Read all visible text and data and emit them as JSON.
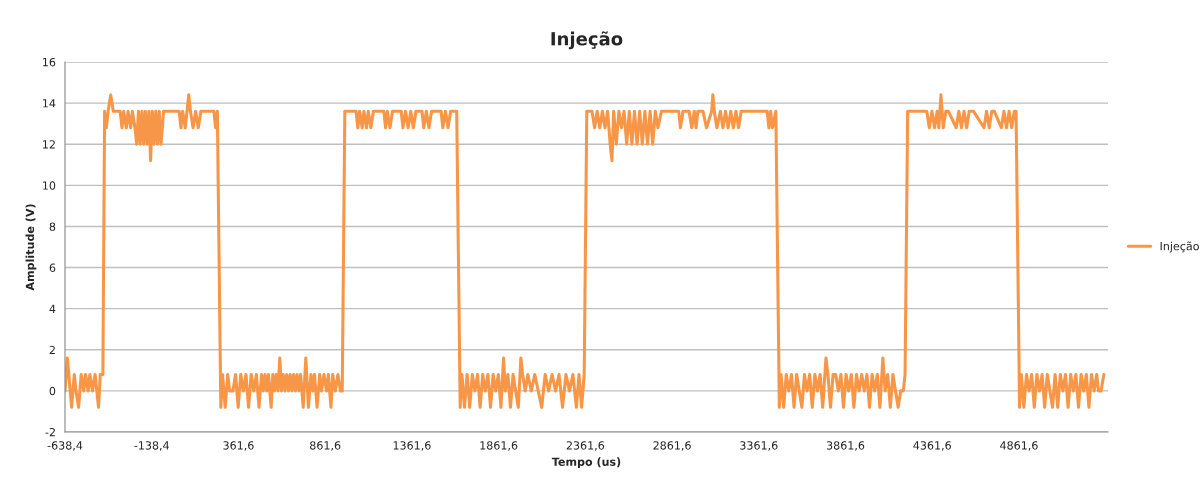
{
  "chart_data": {
    "type": "line",
    "title": "Injeção",
    "xlabel": "Tempo (us)",
    "ylabel": "Amplitude (V)",
    "xlim": [
      -638.4,
      5375
    ],
    "ylim": [
      -2,
      16
    ],
    "yticks": [
      -2,
      0,
      2,
      4,
      6,
      8,
      10,
      12,
      14,
      16
    ],
    "xticks": [
      {
        "value": -638.4,
        "label": "-638,4"
      },
      {
        "value": -138.4,
        "label": "-138,4"
      },
      {
        "value": 361.6,
        "label": "361,6"
      },
      {
        "value": 861.6,
        "label": "861,6"
      },
      {
        "value": 1361.6,
        "label": "1361,6"
      },
      {
        "value": 1861.6,
        "label": "1861,6"
      },
      {
        "value": 2361.6,
        "label": "2361,6"
      },
      {
        "value": 2861.6,
        "label": "2861,6"
      },
      {
        "value": 3361.6,
        "label": "3361,6"
      },
      {
        "value": 3861.6,
        "label": "3861,6"
      },
      {
        "value": 4361.6,
        "label": "4361,6"
      },
      {
        "value": 4861.6,
        "label": "4861,6"
      }
    ],
    "grid": "y",
    "legend": "right",
    "marker": "none",
    "line_style": "solid",
    "series": [
      {
        "name": "Injeção",
        "color": "#f79646",
        "x": [
          -638.4,
          -625,
          -600,
          -585,
          -575,
          -560,
          -545,
          -530,
          -520,
          -505,
          -495,
          -480,
          -465,
          -445,
          -435,
          -420,
          -410,
          -400,
          -390,
          -375,
          -360,
          -320,
          -310,
          -300,
          -285,
          -275,
          -260,
          -250,
          -235,
          -225,
          -215,
          -205,
          -195,
          -185,
          -175,
          -165,
          -155,
          -145,
          -135,
          -125,
          -115,
          -105,
          -95,
          -85,
          -70,
          20,
          30,
          40,
          55,
          65,
          75,
          85,
          100,
          115,
          130,
          145,
          220,
          230,
          240,
          260,
          270,
          285,
          300,
          310,
          330,
          345,
          360,
          375,
          390,
          405,
          420,
          435,
          450,
          465,
          480,
          495,
          505,
          515,
          525,
          535,
          550,
          560,
          570,
          580,
          590,
          600,
          610,
          620,
          630,
          640,
          650,
          660,
          670,
          680,
          690,
          700,
          710,
          720,
          735,
          750,
          765,
          780,
          790,
          800,
          815,
          830,
          840,
          855,
          870,
          880,
          895,
          905,
          920,
          935,
          950,
          960,
          975,
          1040,
          1050,
          1060,
          1075,
          1085,
          1100,
          1110,
          1125,
          1140,
          1200,
          1210,
          1220,
          1235,
          1250,
          1300,
          1310,
          1325,
          1340,
          1355,
          1370,
          1385,
          1420,
          1430,
          1445,
          1460,
          1475,
          1530,
          1540,
          1555,
          1570,
          1585,
          1620,
          1640,
          1650,
          1665,
          1680,
          1695,
          1710,
          1725,
          1740,
          1755,
          1770,
          1785,
          1800,
          1815,
          1830,
          1845,
          1860,
          1875,
          1890,
          1900,
          1915,
          1930,
          1945,
          1960,
          1975,
          1990,
          2000,
          2015,
          2030,
          2050,
          2070,
          2090,
          2110,
          2130,
          2150,
          2170,
          2190,
          2210,
          2230,
          2250,
          2270,
          2290,
          2310,
          2325,
          2340,
          2355,
          2370,
          2400,
          2415,
          2430,
          2445,
          2460,
          2475,
          2490,
          2505,
          2515,
          2525,
          2540,
          2555,
          2570,
          2585,
          2600,
          2615,
          2630,
          2645,
          2660,
          2675,
          2690,
          2705,
          2720,
          2735,
          2750,
          2765,
          2780,
          2800,
          2900,
          2910,
          2925,
          2960,
          2975,
          2990,
          3000,
          3010,
          3040,
          3060,
          3090,
          3097,
          3105,
          3120,
          3140,
          3155,
          3170,
          3185,
          3200,
          3215,
          3230,
          3245,
          3260,
          3300,
          3410,
          3420,
          3430,
          3440,
          3460,
          3480,
          3490,
          3505,
          3520,
          3535,
          3550,
          3565,
          3580,
          3595,
          3610,
          3625,
          3640,
          3655,
          3670,
          3685,
          3700,
          3715,
          3730,
          3749,
          3760,
          3775,
          3790,
          3805,
          3820,
          3835,
          3850,
          3865,
          3880,
          3895,
          3910,
          3925,
          3940,
          3955,
          3970,
          3985,
          4000,
          4015,
          4030,
          4045,
          4060,
          4077,
          4090,
          4105,
          4120,
          4135,
          4150,
          4165,
          4180,
          4195,
          4205,
          4220,
          4330,
          4345,
          4360,
          4375,
          4390,
          4400,
          4412,
          4425,
          4440,
          4455,
          4500,
          4515,
          4530,
          4545,
          4560,
          4575,
          4600,
          4660,
          4675,
          4690,
          4705,
          4720,
          4760,
          4775,
          4790,
          4805,
          4820,
          4835,
          4845,
          4865,
          4875,
          4890,
          4905,
          4920,
          4935,
          4950,
          4965,
          4980,
          4995,
          5010,
          5025,
          5040,
          5055,
          5070,
          5085,
          5100,
          5115,
          5130,
          5145,
          5160,
          5175,
          5190,
          5205,
          5220,
          5235,
          5250,
          5265,
          5280,
          5295,
          5310,
          5320,
          5335,
          5351
        ],
        "values": [
          0,
          1.6,
          -0.8,
          0.8,
          0,
          -0.8,
          0.8,
          0,
          0.8,
          0,
          0.8,
          0,
          0.8,
          -0.8,
          0.8,
          0.8,
          13.6,
          12.8,
          13.6,
          14.4,
          13.6,
          13.6,
          12.8,
          13.6,
          12.8,
          13.6,
          12.8,
          13.6,
          12.8,
          12.0,
          13.6,
          12.0,
          13.6,
          12.0,
          13.6,
          12.0,
          13.6,
          11.2,
          13.6,
          12.0,
          13.6,
          12.0,
          13.6,
          12.0,
          13.6,
          13.6,
          12.8,
          13.6,
          12.8,
          13.6,
          14.4,
          13.6,
          12.8,
          13.6,
          12.8,
          13.6,
          13.6,
          12.8,
          13.6,
          -0.8,
          0.8,
          -0.8,
          0.8,
          0,
          0,
          0.8,
          -0.8,
          0.8,
          0,
          0.8,
          -0.8,
          0.8,
          0,
          0.8,
          -0.8,
          0.8,
          0,
          0.8,
          0,
          0.8,
          -0.8,
          0.8,
          0,
          0.8,
          0,
          1.6,
          0,
          0.8,
          0,
          0.8,
          0,
          0.8,
          0,
          0.8,
          0,
          0.8,
          0,
          0.8,
          -0.8,
          1.6,
          -0.8,
          0.8,
          0,
          0.8,
          -0.8,
          0.8,
          0,
          0.8,
          0,
          0.8,
          -0.8,
          0.8,
          0,
          0.8,
          0,
          0,
          13.6,
          13.6,
          12.8,
          13.6,
          12.8,
          13.6,
          12.8,
          13.6,
          12.8,
          13.6,
          13.6,
          12.8,
          13.6,
          12.8,
          13.6,
          13.6,
          12.8,
          13.6,
          12.8,
          13.6,
          12.8,
          13.6,
          13.6,
          12.8,
          13.6,
          12.8,
          13.6,
          13.6,
          12.8,
          13.6,
          12.8,
          13.6,
          13.6,
          -0.8,
          0.8,
          -0.8,
          0.8,
          -0.8,
          0.8,
          0,
          0.8,
          -0.8,
          0.8,
          0,
          0.8,
          -0.8,
          0.8,
          0,
          0.8,
          -0.8,
          1.6,
          0,
          0.8,
          -0.8,
          0.8,
          0,
          -0.8,
          1.6,
          0.8,
          0,
          0.8,
          0,
          0.8,
          0,
          -0.8,
          0.8,
          0,
          0.8,
          0,
          0.8,
          -0.8,
          0.8,
          0,
          0.8,
          -0.8,
          0.8,
          -0.8,
          0.8,
          13.6,
          13.6,
          12.8,
          13.6,
          12.8,
          13.6,
          12.8,
          13.6,
          12.0,
          11.2,
          13.6,
          12.0,
          13.6,
          12.8,
          13.6,
          12.0,
          13.6,
          12.0,
          13.6,
          12.0,
          13.6,
          12.0,
          13.6,
          12.0,
          13.6,
          12.0,
          13.6,
          12.8,
          13.6,
          13.6,
          12.8,
          13.6,
          13.6,
          12.8,
          13.6,
          12.8,
          13.6,
          13.6,
          12.8,
          13.6,
          14.4,
          13.6,
          12.8,
          13.6,
          12.8,
          13.6,
          12.8,
          13.6,
          12.8,
          13.6,
          12.8,
          13.6,
          13.6,
          13.6,
          12.8,
          13.6,
          12.8,
          13.6,
          -0.8,
          0.8,
          -0.8,
          0.8,
          0,
          0.8,
          -0.8,
          0.8,
          0,
          -0.8,
          0.8,
          0,
          0.8,
          -0.8,
          0.8,
          0,
          0.8,
          -0.8,
          1.6,
          0.8,
          -0.8,
          0.8,
          0.8,
          0,
          0.8,
          -0.8,
          0.8,
          0,
          0.8,
          -0.8,
          0.8,
          0,
          0.8,
          0,
          0.8,
          -0.8,
          0.8,
          0,
          0.8,
          -0.8,
          1.6,
          0,
          0.8,
          -0.8,
          0.8,
          0,
          -0.8,
          0,
          0,
          0.8,
          13.6,
          13.6,
          12.8,
          13.6,
          12.8,
          13.6,
          12.8,
          14.4,
          12.8,
          13.6,
          13.6,
          12.8,
          13.6,
          12.8,
          13.6,
          12.8,
          13.6,
          13.6,
          12.8,
          13.6,
          12.8,
          13.6,
          13.6,
          12.8,
          13.6,
          12.8,
          13.6,
          12.8,
          13.6,
          13.6,
          -0.8,
          0.8,
          -0.8,
          0.8,
          0,
          0.8,
          -0.8,
          0.8,
          0,
          0.8,
          -0.8,
          0.8,
          0,
          -0.8,
          0.8,
          -0.8,
          0.8,
          0,
          0.8,
          -0.8,
          0.8,
          0,
          0.8,
          -0.8,
          0.8,
          0,
          0.8,
          -0.8,
          0.8,
          0,
          0.8,
          0,
          0,
          0.8
        ]
      }
    ]
  }
}
